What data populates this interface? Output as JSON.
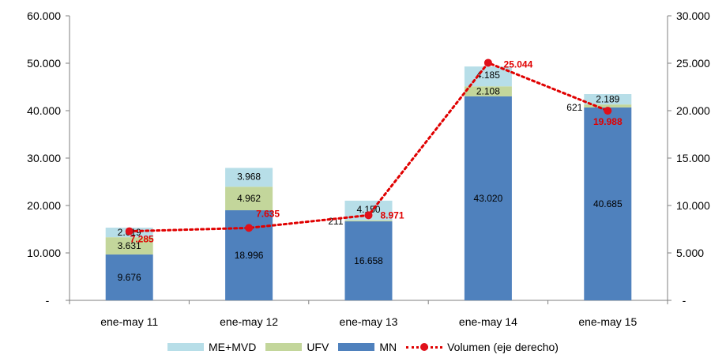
{
  "chart_data": {
    "type": "bar",
    "stacked": true,
    "categories": [
      "ene-may 11",
      "ene-may 12",
      "ene-may 13",
      "ene-may 14",
      "ene-may 15"
    ],
    "series": [
      {
        "name": "MN",
        "color": "#4f81bd",
        "values": [
          9676,
          18996,
          16658,
          43020,
          40685
        ],
        "labels": [
          "9.676",
          "18.996",
          "16.658",
          "43.020",
          "40.685"
        ]
      },
      {
        "name": "UFV",
        "color": "#c3d69b",
        "values": [
          3631,
          4962,
          211,
          2108,
          621
        ],
        "labels": [
          "3.631",
          "4.962",
          "211",
          "2.108",
          "621"
        ]
      },
      {
        "name": "ME+MVD",
        "color": "#b7dee8",
        "values": [
          2019,
          3968,
          4150,
          4185,
          2189
        ],
        "labels": [
          "2.019",
          "3.968",
          "4.150",
          "4.185",
          "2.189"
        ]
      }
    ],
    "line_series": {
      "name": "Volumen (eje derecho)",
      "color": "#e00000",
      "axis": "right",
      "values": [
        7285,
        7635,
        8971,
        25044,
        19988
      ],
      "labels": [
        "7.285",
        "7.635",
        "8.971",
        "25.044",
        "19.988"
      ]
    },
    "y_left": {
      "ylim": [
        0,
        60000
      ],
      "ticks": [
        0,
        10000,
        20000,
        30000,
        40000,
        50000,
        60000
      ],
      "tick_labels": [
        "-",
        "10.000",
        "20.000",
        "30.000",
        "40.000",
        "50.000",
        "60.000"
      ]
    },
    "y_right": {
      "ylim": [
        0,
        30000
      ],
      "ticks": [
        0,
        5000,
        10000,
        15000,
        20000,
        25000,
        30000
      ],
      "tick_labels": [
        "-",
        "5.000",
        "10.000",
        "15.000",
        "20.000",
        "25.000",
        "30.000"
      ]
    },
    "legend_position": "bottom",
    "grid": false
  },
  "legend": {
    "me_mvd": "ME+MVD",
    "ufv": "UFV",
    "mn": "MN",
    "volumen": "Volumen (eje derecho)"
  }
}
